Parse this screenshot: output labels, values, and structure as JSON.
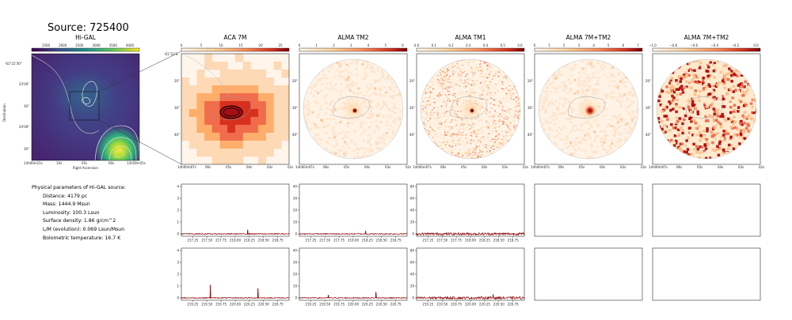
{
  "title": "Source: 725400",
  "hi_gal": {
    "title": "Hi-GAL",
    "cbar_ticks": [
      "1500",
      "2000",
      "2500",
      "3000",
      "3500",
      "4000"
    ],
    "ytick_labels": [
      "-61°22'30\"",
      "23'00\"",
      "30\"",
      "24'00\"",
      "30\""
    ],
    "xtick_labels": [
      "14h00m15s",
      "10s",
      "05s",
      "00s",
      "13h59m55s"
    ],
    "xlabel": "Right Ascension",
    "ylabel": "Declination",
    "colormap": "viridis"
  },
  "panels": [
    {
      "title": "ACA 7M",
      "cbar_ticks": [
        "0",
        "5",
        "10",
        "15",
        "20",
        "25"
      ],
      "top_label": "-61°22'3"
    },
    {
      "title": "ALMA TM2",
      "cbar_ticks": [
        "0",
        "1",
        "2",
        "3",
        "4",
        "5",
        "6"
      ]
    },
    {
      "title": "ALMA TM1",
      "cbar_ticks": [
        "0.0",
        "0.1",
        "0.2",
        "0.3",
        "0.4",
        "0.5",
        "0.6"
      ]
    },
    {
      "title": "ALMA 7M+TM2",
      "cbar_ticks": [
        "0",
        "1",
        "2",
        "3",
        "4",
        "5",
        "6",
        "7"
      ]
    },
    {
      "title": "ALMA 7M+TM2",
      "cbar_ticks": [
        "−1.0",
        "−0.8",
        "−0.6",
        "−0.4",
        "−0.2",
        "0.0"
      ]
    }
  ],
  "map_ytick_labels": [
    "20\"",
    "30\"",
    "40\""
  ],
  "map_xtick_labels": [
    "14h00m07s",
    "06s",
    "05s",
    "04s",
    "03s",
    "02s"
  ],
  "physical": {
    "heading": "Physical parameters of Hi-GAL source:",
    "distance": "Distance: 4179 pc",
    "mass": "Mass: 1444.9 Msun",
    "luminosity": "Luminosity: 100.3 Lsun",
    "surface_density": "Surface density: 1.86 g/cm^2",
    "lm": "L/M (evolution): 0.069 Lsun/Msun",
    "tbol": "Bolometric temperature: 16.7 K"
  },
  "chart_data": [
    {
      "type": "line",
      "name": "ACA 7M spectrum, row 1",
      "x_ticks": [
        "217.25",
        "217.50",
        "217.75",
        "218.00",
        "218.25",
        "218.50",
        "218.75"
      ],
      "xlim": [
        217.05,
        218.95
      ],
      "y_ticks": [
        "0",
        "1",
        "2",
        "3",
        "4"
      ],
      "ylim": [
        -0.2,
        4.2
      ],
      "baseline": 0.0,
      "noise": 0.04,
      "peaks": [
        {
          "x": 218.22,
          "y": 0.35
        }
      ]
    },
    {
      "type": "line",
      "name": "ALMA TM2 spectrum, row 1",
      "x_ticks": [
        "217.25",
        "217.50",
        "217.75",
        "218.00",
        "218.25",
        "218.50",
        "218.75"
      ],
      "xlim": [
        217.05,
        218.95
      ],
      "y_ticks": [
        "0",
        "10",
        "20",
        "30",
        "40"
      ],
      "ylim": [
        -2,
        42
      ],
      "baseline": 0.0,
      "noise": 0.4,
      "peaks": [
        {
          "x": 218.22,
          "y": 2.5
        }
      ]
    },
    {
      "type": "line",
      "name": "ALMA TM1 spectrum, row 1",
      "x_ticks": [
        "217.25",
        "217.50",
        "217.75",
        "218.00",
        "218.25",
        "218.50",
        "218.75"
      ],
      "xlim": [
        217.05,
        218.95
      ],
      "y_ticks": [
        "0",
        "20",
        "40",
        "60",
        "80"
      ],
      "ylim": [
        -4,
        84
      ],
      "baseline": 0.0,
      "noise": 2.0,
      "peaks": []
    },
    {
      "type": "line",
      "name": "ACA 7M spectrum, row 2",
      "x_ticks": [
        "219.25",
        "219.50",
        "219.75",
        "220.00",
        "220.25",
        "220.50",
        "220.75"
      ],
      "xlim": [
        219.05,
        220.95
      ],
      "y_ticks": [
        "0",
        "1",
        "2",
        "3",
        "4"
      ],
      "ylim": [
        -0.2,
        4.2
      ],
      "baseline": 0.0,
      "noise": 0.04,
      "peaks": [
        {
          "x": 219.56,
          "y": 1.1
        },
        {
          "x": 220.4,
          "y": 0.8
        }
      ]
    },
    {
      "type": "line",
      "name": "ALMA TM2 spectrum, row 2",
      "x_ticks": [
        "219.25",
        "219.50",
        "219.75",
        "220.00",
        "220.25",
        "220.50",
        "220.75"
      ],
      "xlim": [
        219.05,
        220.95
      ],
      "y_ticks": [
        "0",
        "10",
        "20",
        "30",
        "40"
      ],
      "ylim": [
        -2,
        42
      ],
      "baseline": 0.0,
      "noise": 0.4,
      "peaks": [
        {
          "x": 219.56,
          "y": 2.5
        },
        {
          "x": 220.4,
          "y": 5.0
        }
      ]
    },
    {
      "type": "line",
      "name": "ALMA TM1 spectrum, row 2",
      "x_ticks": [
        "219.25",
        "219.50",
        "219.75",
        "220.00",
        "220.25",
        "220.50",
        "220.75"
      ],
      "xlim": [
        219.05,
        220.95
      ],
      "y_ticks": [
        "0",
        "20",
        "40",
        "60",
        "80"
      ],
      "ylim": [
        -4,
        84
      ],
      "baseline": 0.0,
      "noise": 2.0,
      "peaks": [
        {
          "x": 220.4,
          "y": 6.0
        }
      ]
    }
  ],
  "colors": {
    "spectrum": "#8b0000",
    "outline": "#000000",
    "contour": "#cccccc"
  }
}
